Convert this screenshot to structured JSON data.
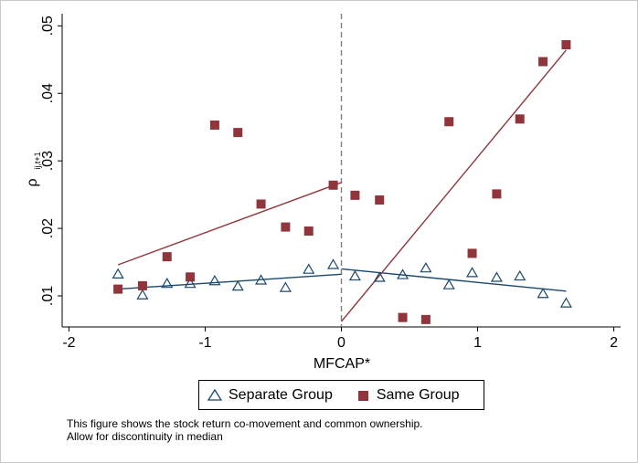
{
  "chart_data": {
    "type": "scatter",
    "xlabel": "MFCAP*",
    "ylabel_main": "ρ",
    "ylabel_sub": "ij,t+1",
    "xlim": [
      -2.05,
      2.05
    ],
    "ylim": [
      0.0054,
      0.0518
    ],
    "x_ticks": [
      {
        "value": -2,
        "label": "-2"
      },
      {
        "value": -1,
        "label": "-1"
      },
      {
        "value": 0,
        "label": "0"
      },
      {
        "value": 1,
        "label": "1"
      },
      {
        "value": 2,
        "label": "2"
      }
    ],
    "y_ticks": [
      {
        "value": 0.01,
        "label": ".01"
      },
      {
        "value": 0.02,
        "label": ".02"
      },
      {
        "value": 0.03,
        "label": ".03"
      },
      {
        "value": 0.04,
        "label": ".04"
      },
      {
        "value": 0.05,
        "label": ".05"
      }
    ],
    "cutoff_x": 0,
    "grid": false,
    "legend_position": "bottom",
    "series": [
      {
        "name": "Separate Group",
        "marker": "hollow-triangle",
        "color": "#1a476f",
        "points": [
          [
            -1.64,
            0.0132
          ],
          [
            -1.46,
            0.0101
          ],
          [
            -1.28,
            0.0118
          ],
          [
            -1.11,
            0.0118
          ],
          [
            -0.93,
            0.0122
          ],
          [
            -0.76,
            0.0114
          ],
          [
            -0.59,
            0.0123
          ],
          [
            -0.41,
            0.0112
          ],
          [
            -0.24,
            0.0139
          ],
          [
            -0.06,
            0.0146
          ],
          [
            0.1,
            0.0129
          ],
          [
            0.28,
            0.0127
          ],
          [
            0.45,
            0.0131
          ],
          [
            0.62,
            0.0141
          ],
          [
            0.79,
            0.0116
          ],
          [
            0.96,
            0.0134
          ],
          [
            1.14,
            0.0127
          ],
          [
            1.31,
            0.0129
          ],
          [
            1.48,
            0.0103
          ],
          [
            1.65,
            0.0089
          ]
        ],
        "fit_left": [
          [
            -1.64,
            0.011
          ],
          [
            0,
            0.0132
          ]
        ],
        "fit_right": [
          [
            0,
            0.014
          ],
          [
            1.65,
            0.0107
          ]
        ]
      },
      {
        "name": "Same Group",
        "marker": "filled-square",
        "color": "#90353b",
        "points": [
          [
            -1.64,
            0.011
          ],
          [
            -1.46,
            0.0115
          ],
          [
            -1.28,
            0.0158
          ],
          [
            -1.11,
            0.0128
          ],
          [
            -0.93,
            0.0353
          ],
          [
            -0.76,
            0.0342
          ],
          [
            -0.59,
            0.0236
          ],
          [
            -0.41,
            0.0202
          ],
          [
            -0.24,
            0.0196
          ],
          [
            -0.06,
            0.0264
          ],
          [
            0.1,
            0.0249
          ],
          [
            0.28,
            0.0242
          ],
          [
            0.45,
            0.0068
          ],
          [
            0.62,
            0.0065
          ],
          [
            0.79,
            0.0358
          ],
          [
            0.96,
            0.0163
          ],
          [
            1.14,
            0.0251
          ],
          [
            1.31,
            0.0362
          ],
          [
            1.48,
            0.0447
          ],
          [
            1.65,
            0.0472
          ]
        ],
        "fit_left": [
          [
            -1.64,
            0.0146
          ],
          [
            0,
            0.0268
          ]
        ],
        "fit_right": [
          [
            0,
            0.0062
          ],
          [
            1.65,
            0.0464
          ]
        ]
      }
    ]
  },
  "legend": {
    "items": [
      {
        "label": "Separate Group"
      },
      {
        "label": "Same Group"
      }
    ]
  },
  "note": {
    "line1": "This figure shows the stock return co-movement and common ownership.",
    "line2": "Allow for discontinuity in median"
  }
}
